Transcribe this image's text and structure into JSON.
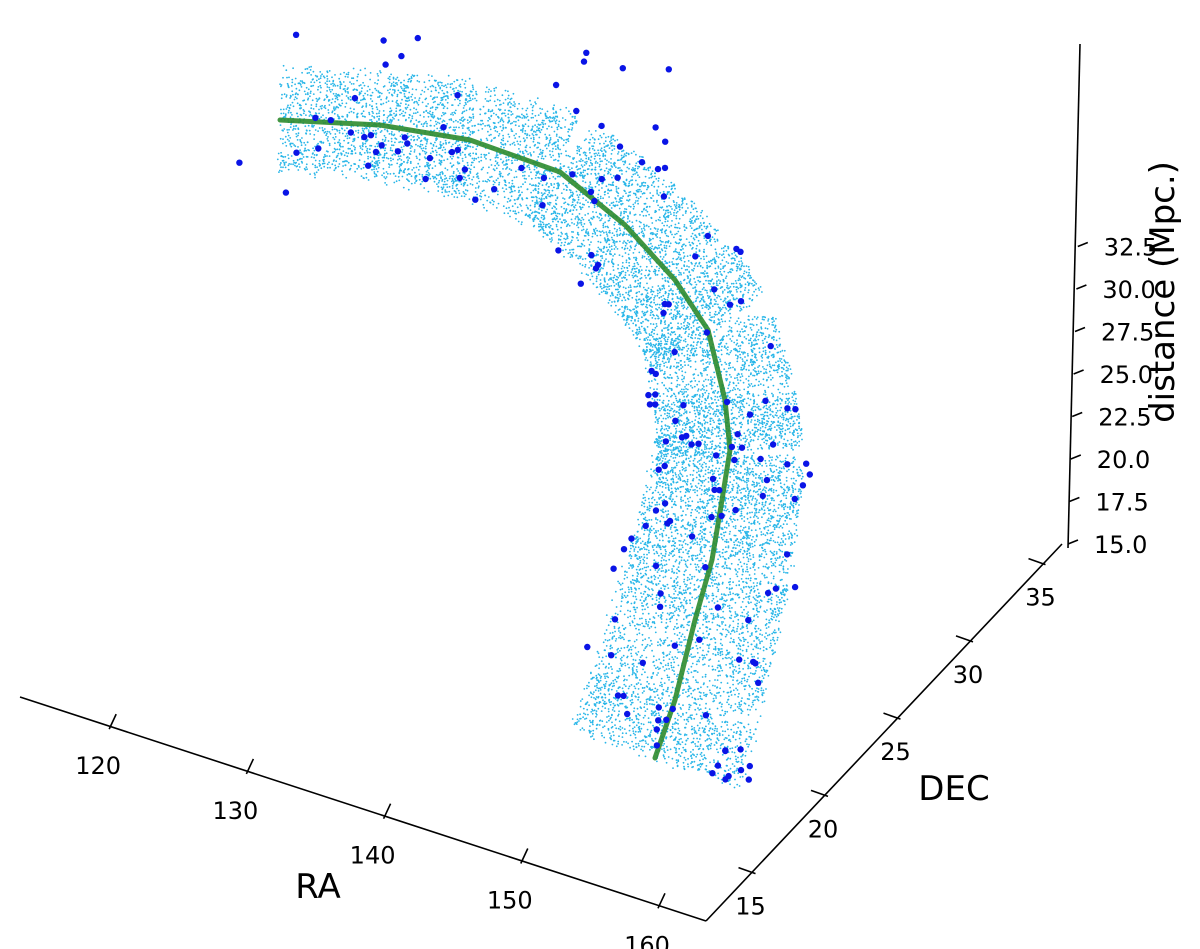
{
  "chart_data": {
    "type": "scatter",
    "projection": "3d",
    "title": "",
    "axes": {
      "x": {
        "label": "RA",
        "ticks": [
          "120",
          "130",
          "140",
          "150",
          "160"
        ],
        "range": [
          115,
          167
        ]
      },
      "y": {
        "label": "DEC",
        "ticks": [
          "15",
          "20",
          "25",
          "30",
          "35"
        ],
        "range": [
          12,
          38
        ]
      },
      "z": {
        "label": "distance (Mpc.)",
        "ticks": [
          "15.0",
          "17.5",
          "20.0",
          "22.5",
          "25.0",
          "27.5",
          "30.0",
          "32.5"
        ],
        "range": [
          15,
          35
        ]
      }
    },
    "grid": false,
    "legend": "none",
    "series": [
      {
        "role": "simulated tube points",
        "style": "small dots",
        "color": "#29b6e8",
        "count": 12000,
        "path": [
          {
            "ra": 123,
            "dec": 31,
            "dist": 31.5
          },
          {
            "ra": 130,
            "dec": 32,
            "dist": 31.6
          },
          {
            "ra": 137,
            "dec": 32,
            "dist": 30.5
          },
          {
            "ra": 143,
            "dec": 30,
            "dist": 28.5
          },
          {
            "ra": 147,
            "dec": 27,
            "dist": 25.5
          },
          {
            "ra": 150,
            "dec": 24,
            "dist": 22.0
          },
          {
            "ra": 152,
            "dec": 21,
            "dist": 18.5
          },
          {
            "ra": 154,
            "dec": 18,
            "dist": 15.5
          },
          {
            "ra": 156,
            "dec": 15,
            "dist": 13.0
          }
        ]
      },
      {
        "role": "central filament line",
        "style": "line",
        "color": "#2e8b2e",
        "path": [
          {
            "ra": 123,
            "dec": 31,
            "dist": 31.5
          },
          {
            "ra": 130,
            "dec": 32,
            "dist": 31.6
          },
          {
            "ra": 137,
            "dec": 32,
            "dist": 30.5
          },
          {
            "ra": 143,
            "dec": 30,
            "dist": 28.5
          },
          {
            "ra": 147,
            "dec": 27,
            "dist": 25.5
          },
          {
            "ra": 150,
            "dec": 24,
            "dist": 22.0
          },
          {
            "ra": 152,
            "dec": 21,
            "dist": 18.5
          },
          {
            "ra": 154,
            "dec": 18,
            "dist": 15.5
          },
          {
            "ra": 156,
            "dec": 15,
            "dist": 13.0
          }
        ]
      },
      {
        "role": "observed galaxies",
        "style": "filled circles",
        "color": "#0a14e6",
        "count": 160
      }
    ]
  }
}
